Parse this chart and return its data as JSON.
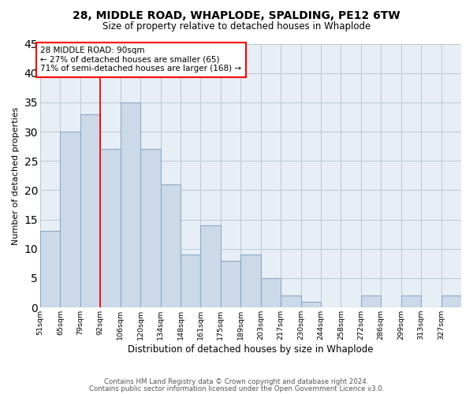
{
  "title": "28, MIDDLE ROAD, WHAPLODE, SPALDING, PE12 6TW",
  "subtitle": "Size of property relative to detached houses in Whaplode",
  "xlabel": "Distribution of detached houses by size in Whaplode",
  "ylabel": "Number of detached properties",
  "bar_color": "#ccd9e8",
  "bar_edge_color": "#8aaac8",
  "background_color": "#ffffff",
  "plot_bg_color": "#e8eef5",
  "grid_color": "#b8c8d8",
  "bin_labels": [
    "51sqm",
    "65sqm",
    "79sqm",
    "92sqm",
    "106sqm",
    "120sqm",
    "134sqm",
    "148sqm",
    "161sqm",
    "175sqm",
    "189sqm",
    "203sqm",
    "217sqm",
    "230sqm",
    "244sqm",
    "258sqm",
    "272sqm",
    "286sqm",
    "299sqm",
    "313sqm",
    "327sqm"
  ],
  "counts": [
    13,
    30,
    33,
    27,
    35,
    27,
    21,
    9,
    14,
    8,
    9,
    5,
    2,
    1,
    0,
    0,
    2,
    0,
    2,
    0,
    2
  ],
  "property_line_bin": 3,
  "annotation_title": "28 MIDDLE ROAD: 90sqm",
  "annotation_line1": "← 27% of detached houses are smaller (65)",
  "annotation_line2": "71% of semi-detached houses are larger (168) →",
  "ylim": [
    0,
    45
  ],
  "yticks": [
    0,
    5,
    10,
    15,
    20,
    25,
    30,
    35,
    40,
    45
  ],
  "footer_line1": "Contains HM Land Registry data © Crown copyright and database right 2024.",
  "footer_line2": "Contains public sector information licensed under the Open Government Licence v3.0."
}
